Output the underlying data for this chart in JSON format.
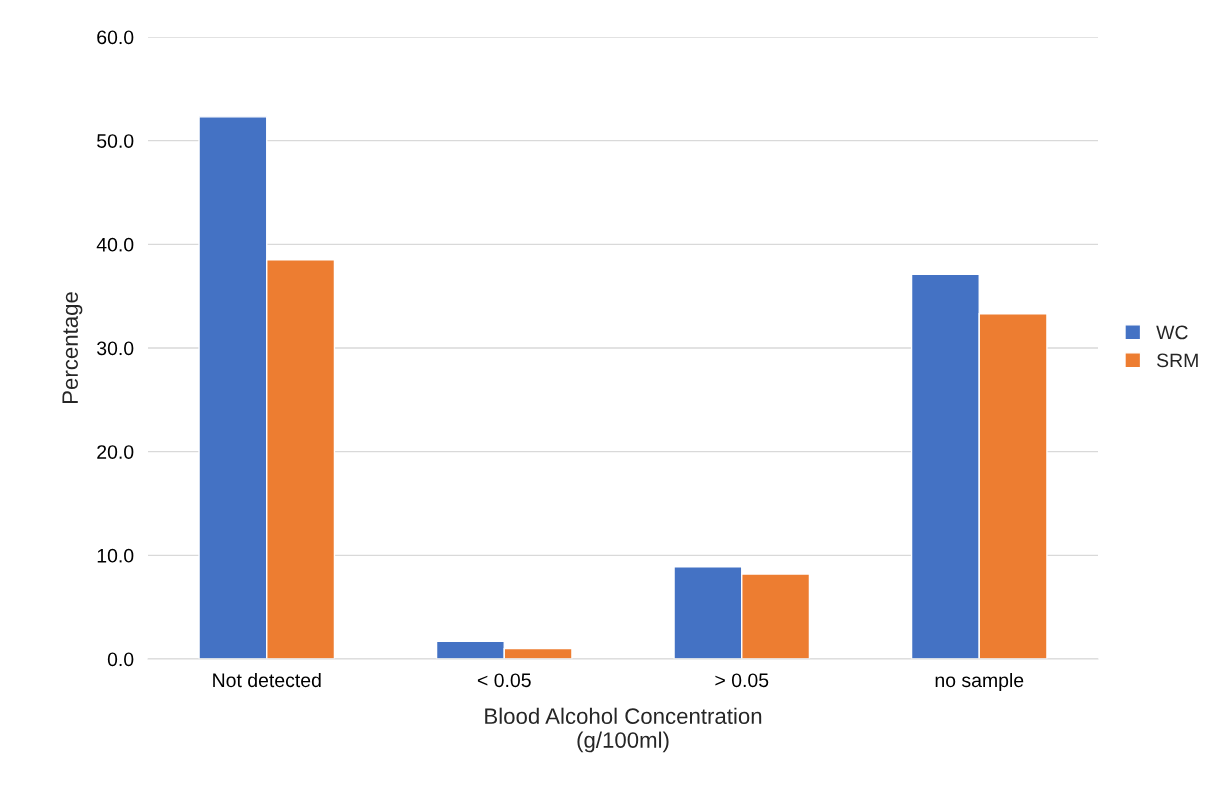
{
  "chart_data": {
    "type": "bar",
    "xlabel": "Blood Alcohol Concentration\n(g/100ml)",
    "ylabel": "Percentage",
    "categories": [
      "Not detected",
      "< 0.05",
      "> 0.05",
      "no sample"
    ],
    "series": [
      {
        "name": "WC",
        "color": "#4472c4",
        "values": [
          52.3,
          1.7,
          8.9,
          37.1
        ]
      },
      {
        "name": "SRM",
        "color": "#ed7d31",
        "values": [
          38.5,
          1.0,
          8.2,
          33.3
        ]
      }
    ],
    "ylim": [
      0,
      60
    ],
    "yticks": [
      {
        "value": 0,
        "label": "0.0"
      },
      {
        "value": 10,
        "label": "10.0"
      },
      {
        "value": 20,
        "label": "20.0"
      },
      {
        "value": 30,
        "label": "30.0"
      },
      {
        "value": 40,
        "label": "40.0"
      },
      {
        "value": 50,
        "label": "50.0"
      },
      {
        "value": 60,
        "label": "60.0"
      }
    ],
    "grid": "y",
    "legend": "right"
  }
}
